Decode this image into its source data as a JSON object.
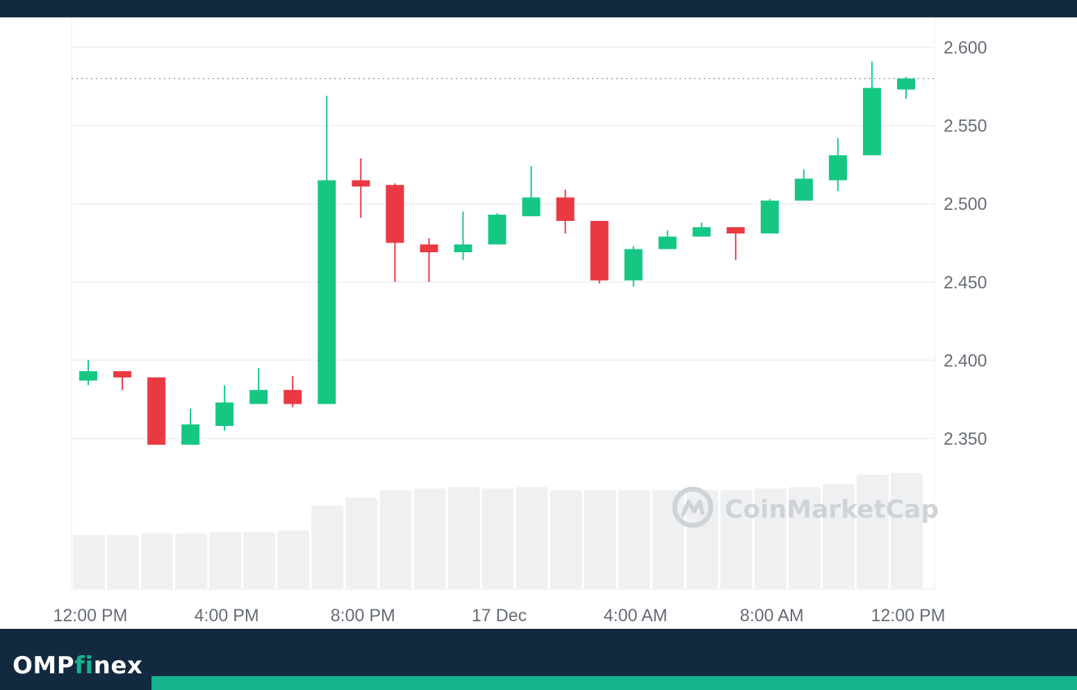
{
  "brand": {
    "name_prefix": "OMP",
    "name_accent": "fi",
    "name_suffix": "nex"
  },
  "watermark": {
    "text": "CoinMarketCap"
  },
  "colors": {
    "up": "#16c784",
    "down": "#ea3943",
    "volume": "#eff0f2",
    "header": "#112a3f",
    "accent": "#16b38e"
  },
  "chart_data": {
    "type": "candlestick",
    "x_tick_labels": [
      "12:00 PM",
      "4:00 PM",
      "8:00 PM",
      "17 Dec",
      "4:00 AM",
      "8:00 AM",
      "12:00 PM"
    ],
    "x_tick_candle_index": [
      0,
      4,
      8,
      12,
      16,
      20,
      24
    ],
    "y_ticks": [
      "2.600",
      "2.550",
      "2.500",
      "2.450",
      "2.400",
      "2.350"
    ],
    "ylim": [
      2.325,
      2.62
    ],
    "reference_price": 2.58,
    "grid": true,
    "candles": [
      {
        "o": 2.387,
        "h": 2.4,
        "l": 2.384,
        "c": 2.393
      },
      {
        "o": 2.393,
        "h": 2.393,
        "l": 2.381,
        "c": 2.389
      },
      {
        "o": 2.389,
        "h": 2.389,
        "l": 2.346,
        "c": 2.346
      },
      {
        "o": 2.346,
        "h": 2.369,
        "l": 2.346,
        "c": 2.359
      },
      {
        "o": 2.358,
        "h": 2.384,
        "l": 2.355,
        "c": 2.373
      },
      {
        "o": 2.372,
        "h": 2.395,
        "l": 2.372,
        "c": 2.381
      },
      {
        "o": 2.381,
        "h": 2.39,
        "l": 2.37,
        "c": 2.372
      },
      {
        "o": 2.372,
        "h": 2.569,
        "l": 2.372,
        "c": 2.515
      },
      {
        "o": 2.515,
        "h": 2.529,
        "l": 2.491,
        "c": 2.511
      },
      {
        "o": 2.512,
        "h": 2.513,
        "l": 2.45,
        "c": 2.475
      },
      {
        "o": 2.474,
        "h": 2.478,
        "l": 2.45,
        "c": 2.469
      },
      {
        "o": 2.469,
        "h": 2.495,
        "l": 2.464,
        "c": 2.474
      },
      {
        "o": 2.474,
        "h": 2.494,
        "l": 2.474,
        "c": 2.493
      },
      {
        "o": 2.492,
        "h": 2.524,
        "l": 2.492,
        "c": 2.504
      },
      {
        "o": 2.504,
        "h": 2.509,
        "l": 2.481,
        "c": 2.489
      },
      {
        "o": 2.489,
        "h": 2.489,
        "l": 2.449,
        "c": 2.451
      },
      {
        "o": 2.451,
        "h": 2.473,
        "l": 2.447,
        "c": 2.471
      },
      {
        "o": 2.471,
        "h": 2.483,
        "l": 2.471,
        "c": 2.479
      },
      {
        "o": 2.479,
        "h": 2.488,
        "l": 2.479,
        "c": 2.485
      },
      {
        "o": 2.485,
        "h": 2.485,
        "l": 2.464,
        "c": 2.481
      },
      {
        "o": 2.481,
        "h": 2.503,
        "l": 2.481,
        "c": 2.502
      },
      {
        "o": 2.502,
        "h": 2.522,
        "l": 2.502,
        "c": 2.516
      },
      {
        "o": 2.515,
        "h": 2.542,
        "l": 2.508,
        "c": 2.531
      },
      {
        "o": 2.531,
        "h": 2.591,
        "l": 2.531,
        "c": 2.574
      },
      {
        "o": 2.573,
        "h": 2.581,
        "l": 2.567,
        "c": 2.58
      }
    ],
    "volume_relative": [
      0.35,
      0.35,
      0.36,
      0.36,
      0.37,
      0.37,
      0.38,
      0.54,
      0.59,
      0.64,
      0.65,
      0.66,
      0.65,
      0.66,
      0.64,
      0.64,
      0.64,
      0.64,
      0.64,
      0.64,
      0.65,
      0.66,
      0.68,
      0.74,
      0.75
    ]
  }
}
